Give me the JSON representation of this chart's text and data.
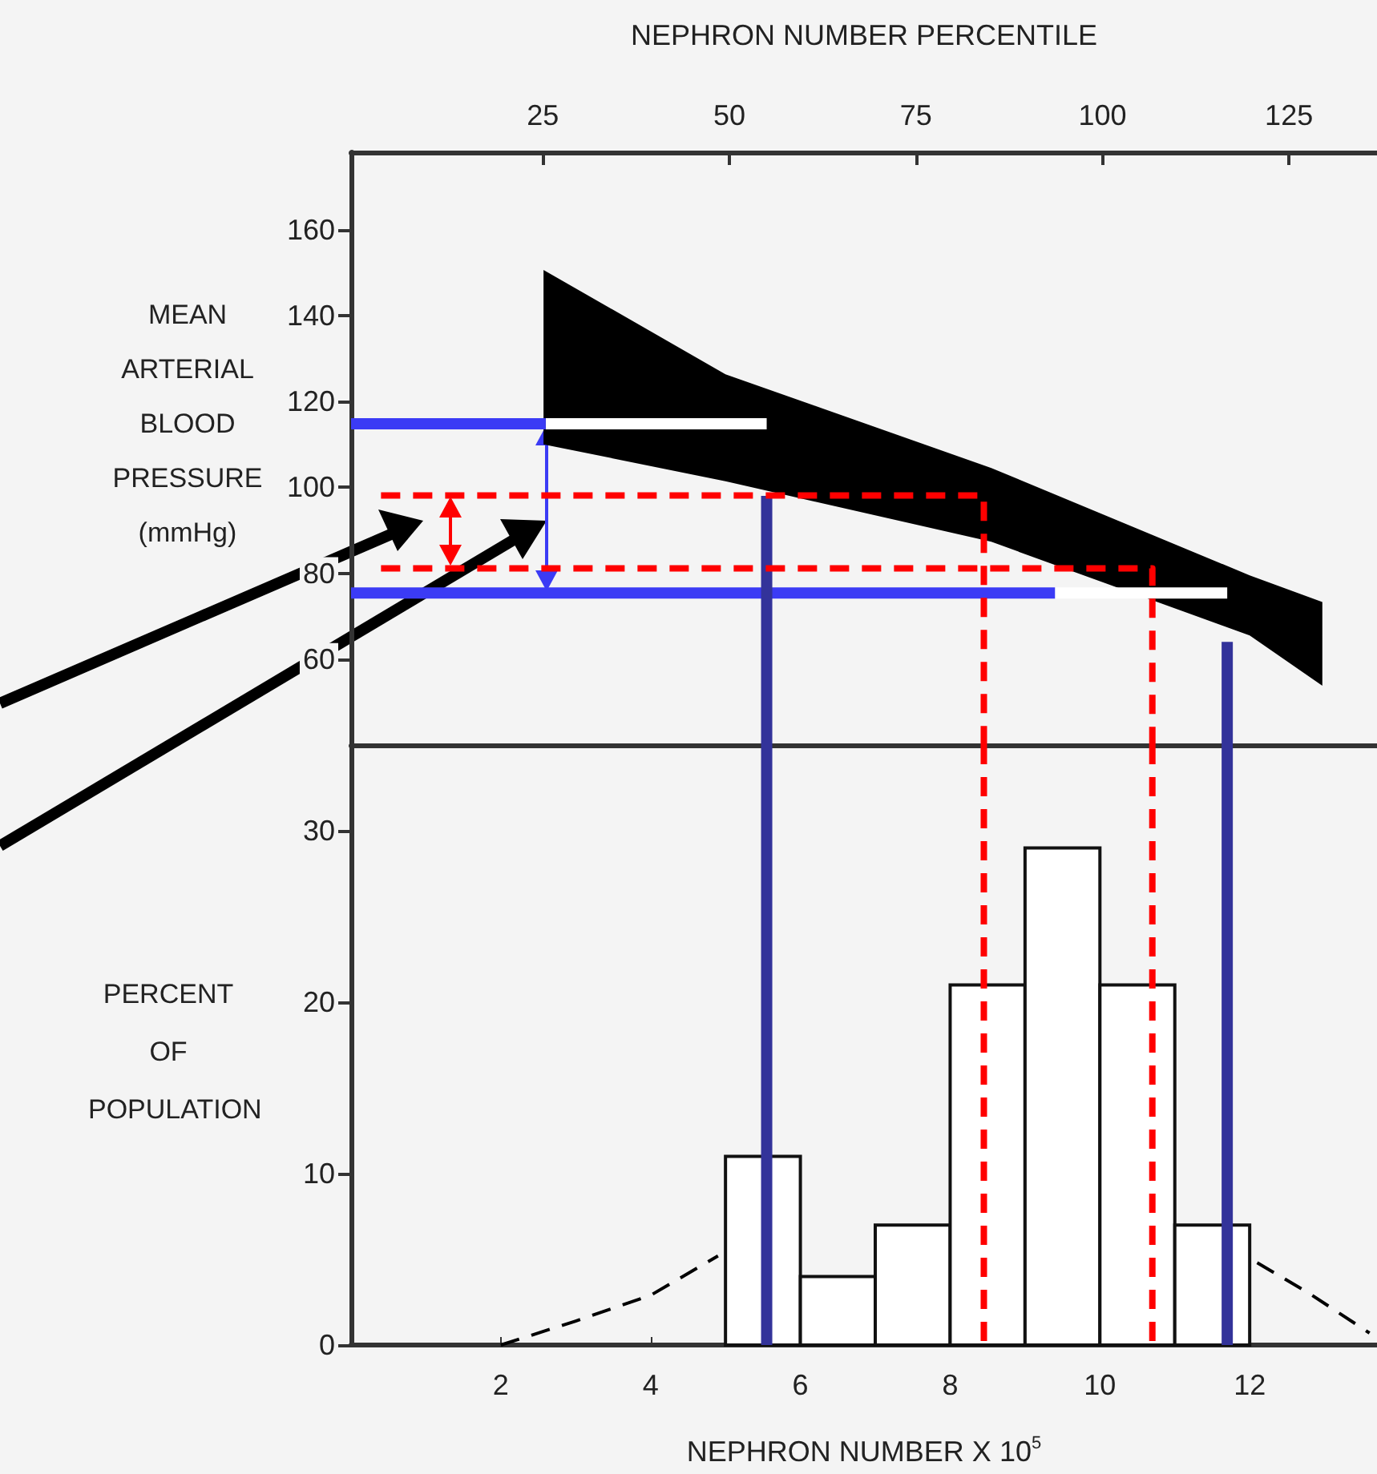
{
  "chart_data": [
    {
      "type": "area",
      "x2label": "NEPHRON NUMBER PERCENTILE",
      "ylabel": "MEAN ARTERIAL BLOOD PRESSURE (mmHg)",
      "xlim": [
        0,
        13.7
      ],
      "x2lim": [
        -0.7,
        136.8
      ],
      "x2ticks": [
        25,
        50,
        75,
        100,
        125
      ],
      "ylim": [
        40,
        178
      ],
      "yticks": [
        60,
        80,
        100,
        120,
        140,
        160
      ],
      "tick_labels": "y",
      "marker": "none",
      "series": [
        {
          "type": "area",
          "color": "#000000",
          "x": [
            2.57,
            5.0,
            8.55,
            12.0,
            12.97
          ],
          "values": [
            null,
            null,
            null,
            null,
            null
          ],
          "upper": [
            150.6,
            126.3,
            104.5,
            79.5,
            73.3
          ],
          "lower": [
            110,
            101.4,
            87.3,
            65.5,
            53.8
          ]
        },
        {
          "type": "line",
          "color": "#ffffff",
          "line_style": "solid",
          "x": [
            2.6,
            5.55
          ],
          "values": [
            114.8,
            114.8
          ]
        },
        {
          "type": "line",
          "color": "#ffffff",
          "line_style": "solid",
          "x": [
            9.4,
            11.7
          ],
          "values": [
            75.4,
            75.4
          ]
        },
        {
          "type": "line",
          "color": "#3b3bf5",
          "line_style": "solid",
          "x": [
            0,
            2.6
          ],
          "values": [
            114.8,
            114.8
          ]
        },
        {
          "type": "line",
          "color": "#3b3bf5",
          "line_style": "solid",
          "x": [
            0,
            9.4
          ],
          "values": [
            75.4,
            75.4
          ]
        },
        {
          "type": "line",
          "color": "#33339a",
          "line_style": "solid",
          "x": [
            5.55,
            5.55
          ],
          "values": [
            98,
            40
          ]
        },
        {
          "type": "line",
          "color": "#33339a",
          "line_style": "solid",
          "x": [
            11.7,
            11.7
          ],
          "values": [
            64,
            40
          ]
        },
        {
          "type": "line",
          "color": "#ff0000",
          "line_style": "dashed",
          "x": [
            0.4,
            8.45,
            8.45
          ],
          "values": [
            98.1,
            98.1,
            40
          ]
        },
        {
          "type": "line",
          "color": "#ff0000",
          "line_style": "dashed",
          "x": [
            0.4,
            10.7,
            10.7
          ],
          "values": [
            81.1,
            81.1,
            40
          ]
        }
      ]
    },
    {
      "type": "histogram",
      "xlabel": "NEPHRON NUMBER X 10$^{5}$",
      "ylabel": "PERCENT OF POPULATION",
      "xlim": [
        0,
        13.7
      ],
      "xticks": [
        2,
        4,
        6,
        8,
        10,
        12
      ],
      "ylim": [
        0,
        35
      ],
      "yticks": [
        0,
        10,
        20,
        30
      ],
      "marker": "none",
      "color": "#ffffff",
      "bins": [
        5,
        6,
        7,
        8,
        9,
        10,
        11,
        12
      ],
      "values": [
        11,
        4,
        7,
        21,
        29,
        21,
        7
      ],
      "series": [
        {
          "type": "line",
          "color": "#000000",
          "line_style": "dashed",
          "x": [
            2,
            3,
            4,
            4.9
          ],
          "values": [
            0,
            1.4,
            2.9,
            5.2
          ]
        },
        {
          "type": "line",
          "color": "#000000",
          "line_style": "dashed",
          "x": [
            12.1,
            12.8,
            13.6
          ],
          "values": [
            4.8,
            3,
            0.7
          ]
        },
        {
          "type": "line",
          "color": "#33339a",
          "line_style": "solid",
          "x": [
            5.55,
            5.55
          ],
          "values": [
            35,
            0
          ]
        },
        {
          "type": "line",
          "color": "#33339a",
          "line_style": "solid",
          "x": [
            11.7,
            11.7
          ],
          "values": [
            35,
            0
          ]
        },
        {
          "type": "line",
          "color": "#ff0000",
          "line_style": "dashed",
          "x": [
            8.45,
            8.45
          ],
          "values": [
            35,
            0
          ]
        },
        {
          "type": "line",
          "color": "#ff0000",
          "line_style": "dashed",
          "x": [
            10.7,
            10.7
          ],
          "values": [
            35,
            0
          ]
        }
      ]
    }
  ]
}
